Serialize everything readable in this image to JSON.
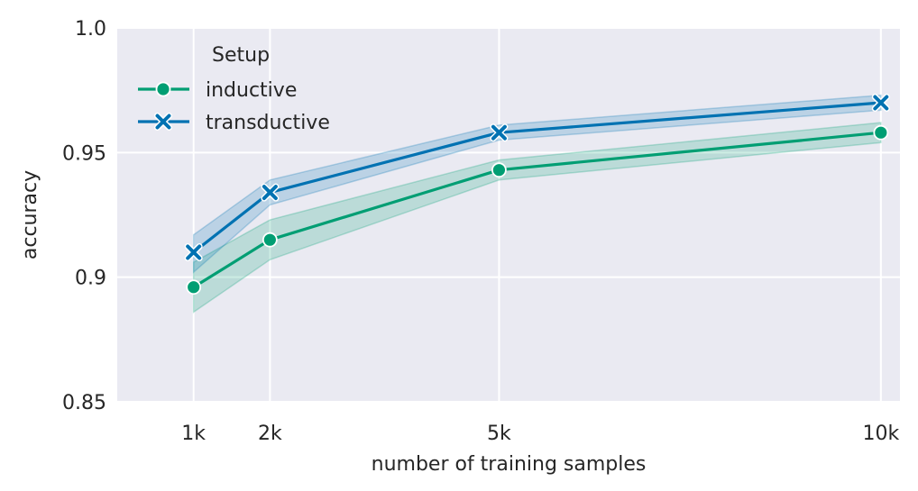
{
  "chart_data": {
    "type": "line",
    "title": "",
    "xlabel": "number of training samples",
    "ylabel": "accuracy",
    "x": [
      1000,
      2000,
      5000,
      10000
    ],
    "xticks": [
      1000,
      2000,
      5000,
      10000
    ],
    "xtick_labels": [
      "1k",
      "2k",
      "5k",
      "10k"
    ],
    "xlim": [
      0,
      10250
    ],
    "ylim": [
      0.85,
      1.0
    ],
    "yticks": [
      0.85,
      0.9,
      0.95,
      1.0
    ],
    "ytick_labels": [
      "0.85",
      "0.9",
      "0.95",
      "1.0"
    ],
    "grid": true,
    "legend": {
      "title": "Setup",
      "location": "upper-left"
    },
    "series": [
      {
        "name": "inductive",
        "color": "#009e73",
        "marker": "circle",
        "values": [
          0.896,
          0.915,
          0.943,
          0.958
        ],
        "ci_lower": [
          0.886,
          0.907,
          0.939,
          0.954
        ],
        "ci_upper": [
          0.906,
          0.923,
          0.947,
          0.962
        ]
      },
      {
        "name": "transductive",
        "color": "#0072b2",
        "marker": "x",
        "values": [
          0.91,
          0.934,
          0.958,
          0.97
        ],
        "ci_lower": [
          0.902,
          0.929,
          0.955,
          0.967
        ],
        "ci_upper": [
          0.917,
          0.939,
          0.961,
          0.973
        ]
      }
    ]
  }
}
